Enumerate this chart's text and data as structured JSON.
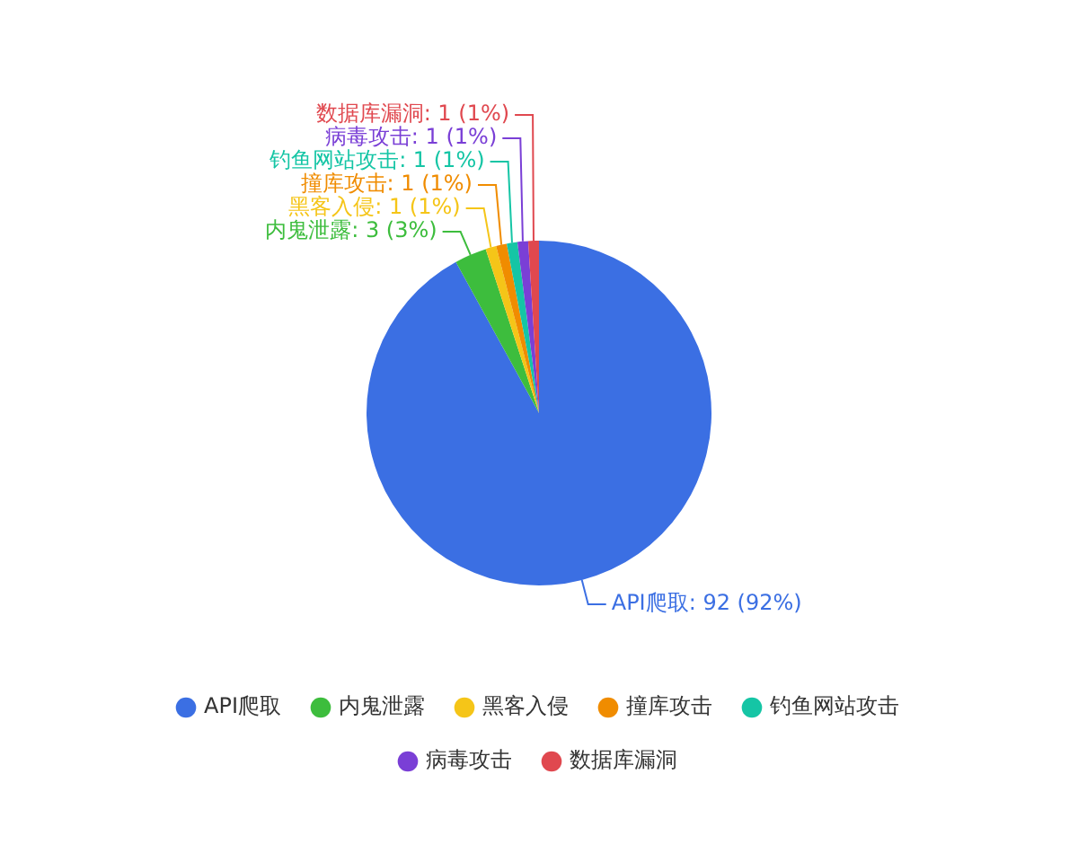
{
  "chart_data": {
    "type": "pie",
    "categories": [
      "API爬取",
      "内鬼泄露",
      "黑客入侵",
      "撞库攻击",
      "钓鱼网站攻击",
      "病毒攻击",
      "数据库漏洞"
    ],
    "values": [
      92,
      3,
      1,
      1,
      1,
      1,
      1
    ],
    "colors": [
      "#3b6fe3",
      "#3dbd3d",
      "#f5c518",
      "#f08c00",
      "#15c5a5",
      "#7a3fd6",
      "#e0484f"
    ],
    "value_labels": [
      "API爬取: 92 (92%)",
      "内鬼泄露: 3 (3%)",
      "黑客入侵: 1 (1%)",
      "撞库攻击: 1 (1%)",
      "钓鱼网站攻击: 1 (1%)",
      "病毒攻击: 1 (1%)",
      "数据库漏洞: 1 (1%)"
    ],
    "legend": "bottom",
    "marker": "circle"
  }
}
